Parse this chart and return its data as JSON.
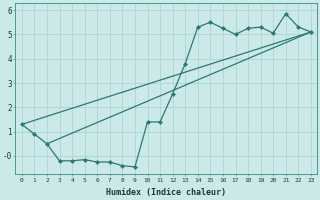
{
  "xlabel": "Humidex (Indice chaleur)",
  "bg_color": "#cce9e9",
  "grid_color": "#a8d0d0",
  "line_color": "#2a7a70",
  "xlim": [
    -0.5,
    23.5
  ],
  "ylim": [
    -0.75,
    6.3
  ],
  "yticks": [
    0,
    1,
    2,
    3,
    4,
    5,
    6
  ],
  "ytick_labels": [
    "-0",
    "1",
    "2",
    "3",
    "4",
    "5",
    "6"
  ],
  "xticks": [
    0,
    1,
    2,
    3,
    4,
    5,
    6,
    7,
    8,
    9,
    10,
    11,
    12,
    13,
    14,
    15,
    16,
    17,
    18,
    19,
    20,
    21,
    22,
    23
  ],
  "series1": {
    "x": [
      0,
      1,
      2,
      3,
      4,
      5,
      6,
      7,
      8,
      9,
      10,
      11,
      12,
      13,
      14,
      15,
      16,
      17,
      18,
      19,
      20,
      21,
      22,
      23
    ],
    "y": [
      1.3,
      0.9,
      0.5,
      -0.2,
      -0.2,
      -0.15,
      -0.25,
      -0.25,
      -0.4,
      -0.45,
      1.4,
      1.4,
      2.55,
      3.8,
      5.3,
      5.5,
      5.25,
      5.0,
      5.25,
      5.3,
      5.05,
      5.85,
      5.3,
      5.1
    ]
  },
  "line1": {
    "x": [
      0,
      23
    ],
    "y": [
      1.3,
      5.1
    ]
  },
  "line2": {
    "x": [
      2,
      23
    ],
    "y": [
      0.5,
      5.1
    ]
  }
}
